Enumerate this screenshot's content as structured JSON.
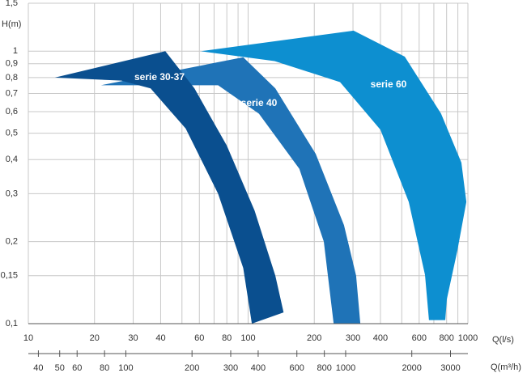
{
  "chart_data": {
    "type": "area",
    "x_label": "Q(l/s)",
    "x2_label": "Q(m³/h)",
    "y_label": "H(m)",
    "xscale": "log",
    "yscale": "log",
    "grid": true,
    "xlim": [
      10,
      1000
    ],
    "xticks": [
      10,
      20,
      30,
      40,
      60,
      80,
      100,
      200,
      300,
      400,
      600,
      800,
      1000
    ],
    "xgrid": [
      50,
      70,
      90,
      500,
      700,
      900
    ],
    "x2lim": [
      36,
      3600
    ],
    "x2ticks": [
      40,
      50,
      60,
      80,
      100,
      200,
      300,
      400,
      600,
      800,
      1000,
      2000,
      3000
    ],
    "ylim": [
      0.1,
      1.5
    ],
    "yticks": [
      {
        "value": 0.1,
        "label": "0,1"
      },
      {
        "value": 0.15,
        "label": "0,15"
      },
      {
        "value": 0.2,
        "label": "0,2"
      },
      {
        "value": 0.3,
        "label": "0,3"
      },
      {
        "value": 0.4,
        "label": "0,4"
      },
      {
        "value": 0.5,
        "label": "0,5"
      },
      {
        "value": 0.6,
        "label": "0,6"
      },
      {
        "value": 0.7,
        "label": "0,7"
      },
      {
        "value": 0.8,
        "label": "0,8"
      },
      {
        "value": 0.9,
        "label": "0,9"
      },
      1,
      {
        "value": 1.5,
        "label": "1,5"
      }
    ],
    "series": [
      {
        "name": "serie 60",
        "color": "#0d8fd0",
        "x": [
          61,
          302,
          516,
          755,
          934,
          984,
          895,
          802,
          789,
          665,
          638,
          538,
          400,
          262,
          132
        ],
        "values": [
          1.0,
          1.19,
          0.955,
          0.59,
          0.39,
          0.28,
          0.185,
          0.123,
          0.103,
          0.103,
          0.151,
          0.28,
          0.515,
          0.77,
          0.92
        ]
      },
      {
        "name": "serie 40",
        "color": "#1f73b7",
        "x": [
          21.4,
          95,
          133,
          203,
          273,
          310,
          324,
          245,
          221,
          171,
          112,
          73
        ],
        "values": [
          0.75,
          0.95,
          0.73,
          0.42,
          0.23,
          0.15,
          0.1,
          0.1,
          0.2,
          0.37,
          0.59,
          0.75
        ]
      },
      {
        "name": "serie 30-37",
        "color": "#0a4f8f",
        "x": [
          13.2,
          42,
          57,
          80,
          107,
          133,
          145,
          104,
          95,
          73,
          52,
          36,
          26.5
        ],
        "values": [
          0.8,
          1.0,
          0.73,
          0.45,
          0.26,
          0.15,
          0.11,
          0.1,
          0.16,
          0.3,
          0.52,
          0.73,
          0.78
        ]
      }
    ]
  }
}
